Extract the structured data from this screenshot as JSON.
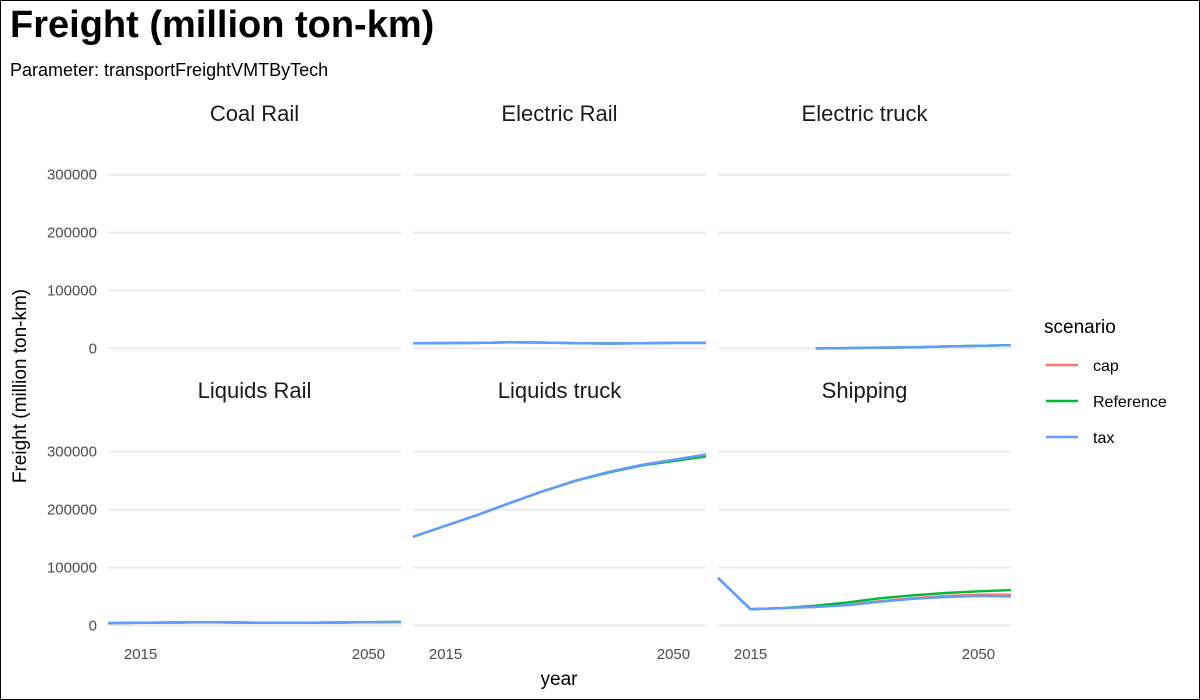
{
  "chart_data": {
    "type": "line",
    "title": "Freight (million ton-km)",
    "subtitle": "Parameter: transportFreightVMTByTech",
    "xlabel": "year",
    "ylabel": "Freight (million ton-km)",
    "xlim": [
      2010,
      2055
    ],
    "ylim": [
      -20000,
      360000
    ],
    "x_ticks": [
      2015,
      2050
    ],
    "y_ticks": [
      0,
      100000,
      200000,
      300000
    ],
    "grid": true,
    "facet_layout": "2 rows x 3 columns, shared axes",
    "legend": {
      "title": "scenario",
      "position": "right",
      "entries": [
        {
          "name": "cap",
          "color": "#F8766D"
        },
        {
          "name": "Reference",
          "color": "#00BA38"
        },
        {
          "name": "tax",
          "color": "#619CFF"
        }
      ]
    },
    "draw_order": [
      "cap",
      "Reference",
      "tax"
    ],
    "panels": [
      {
        "title": "Coal Rail",
        "series": []
      },
      {
        "title": "Electric Rail",
        "series": [
          {
            "name": "cap",
            "x": [
              2010,
              2015,
              2020,
              2025,
              2030,
              2035,
              2040,
              2045,
              2050,
              2055
            ],
            "y": [
              9000,
              9200,
              9500,
              10500,
              10000,
              9000,
              8500,
              9000,
              9500,
              9500
            ]
          },
          {
            "name": "Reference",
            "x": [
              2010,
              2015,
              2020,
              2025,
              2030,
              2035,
              2040,
              2045,
              2050,
              2055
            ],
            "y": [
              9000,
              9200,
              9500,
              10500,
              10000,
              9000,
              8500,
              9000,
              9500,
              9500
            ]
          },
          {
            "name": "tax",
            "x": [
              2010,
              2015,
              2020,
              2025,
              2030,
              2035,
              2040,
              2045,
              2050,
              2055
            ],
            "y": [
              9000,
              9200,
              9500,
              10500,
              10000,
              9000,
              8500,
              9000,
              9500,
              9500
            ]
          }
        ]
      },
      {
        "title": "Electric truck",
        "series": [
          {
            "name": "cap",
            "x": [
              2025,
              2030,
              2035,
              2040,
              2045,
              2050,
              2055
            ],
            "y": [
              0,
              500,
              1500,
              2000,
              3500,
              4500,
              5500
            ]
          },
          {
            "name": "Reference",
            "x": [
              2025,
              2030,
              2035,
              2040,
              2045,
              2050,
              2055
            ],
            "y": [
              0,
              500,
              1500,
              2000,
              3500,
              4500,
              5500
            ]
          },
          {
            "name": "tax",
            "x": [
              2025,
              2030,
              2035,
              2040,
              2045,
              2050,
              2055
            ],
            "y": [
              0,
              500,
              1500,
              2000,
              3500,
              4500,
              5500
            ]
          }
        ]
      },
      {
        "title": "Liquids Rail",
        "series": [
          {
            "name": "cap",
            "x": [
              2010,
              2015,
              2020,
              2025,
              2030,
              2035,
              2040,
              2045,
              2050,
              2055
            ],
            "y": [
              4000,
              4500,
              5000,
              5500,
              5000,
              4500,
              4500,
              5000,
              5500,
              6000
            ]
          },
          {
            "name": "Reference",
            "x": [
              2010,
              2015,
              2020,
              2025,
              2030,
              2035,
              2040,
              2045,
              2050,
              2055
            ],
            "y": [
              4000,
              4500,
              5000,
              5500,
              5000,
              4500,
              4500,
              5000,
              5500,
              6000
            ]
          },
          {
            "name": "tax",
            "x": [
              2010,
              2015,
              2020,
              2025,
              2030,
              2035,
              2040,
              2045,
              2050,
              2055
            ],
            "y": [
              4000,
              4500,
              5000,
              5500,
              5000,
              4500,
              4500,
              5000,
              5500,
              6000
            ]
          }
        ]
      },
      {
        "title": "Liquids truck",
        "series": [
          {
            "name": "cap",
            "x": [
              2010,
              2015,
              2020,
              2025,
              2030,
              2035,
              2040,
              2045,
              2050,
              2055
            ],
            "y": [
              153000,
              172000,
              191000,
              212000,
              232000,
              250000,
              265000,
              277000,
              286000,
              295000
            ]
          },
          {
            "name": "Reference",
            "x": [
              2010,
              2015,
              2020,
              2025,
              2030,
              2035,
              2040,
              2045,
              2050,
              2055
            ],
            "y": [
              153000,
              172000,
              191000,
              212000,
              232000,
              250000,
              264000,
              276000,
              284000,
              292000
            ]
          },
          {
            "name": "tax",
            "x": [
              2010,
              2015,
              2020,
              2025,
              2030,
              2035,
              2040,
              2045,
              2050,
              2055
            ],
            "y": [
              153000,
              172000,
              191000,
              212000,
              232000,
              250000,
              265000,
              277000,
              286000,
              295000
            ]
          }
        ]
      },
      {
        "title": "Shipping",
        "series": [
          {
            "name": "cap",
            "x": [
              2010,
              2015,
              2020,
              2025,
              2030,
              2035,
              2040,
              2045,
              2050,
              2055
            ],
            "y": [
              82000,
              28000,
              30000,
              32000,
              36000,
              42000,
              47000,
              51000,
              53000,
              53000
            ]
          },
          {
            "name": "Reference",
            "x": [
              2010,
              2015,
              2020,
              2025,
              2030,
              2035,
              2040,
              2045,
              2050,
              2055
            ],
            "y": [
              82000,
              28000,
              30000,
              34000,
              40000,
              47000,
              52000,
              56000,
              59000,
              61000
            ]
          },
          {
            "name": "tax",
            "x": [
              2010,
              2015,
              2020,
              2025,
              2030,
              2035,
              2040,
              2045,
              2050,
              2055
            ],
            "y": [
              82000,
              28000,
              30000,
              32000,
              35000,
              41000,
              46000,
              49000,
              51000,
              50000
            ]
          }
        ]
      }
    ]
  }
}
